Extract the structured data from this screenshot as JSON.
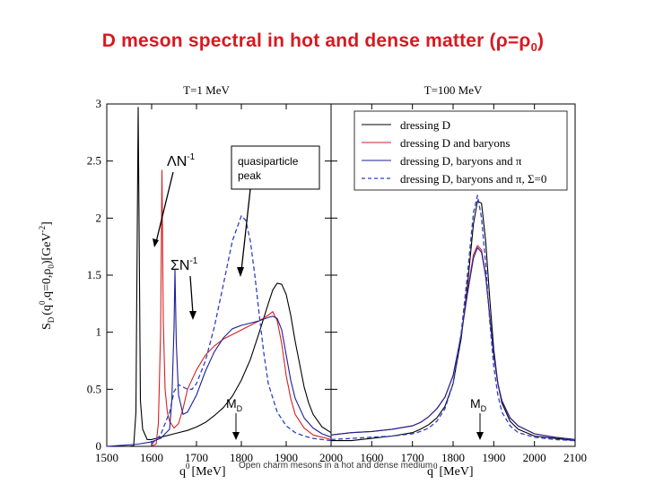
{
  "slide": {
    "title_main": "D meson spectral in hot and dense matter (",
    "title_rho": "ρ=ρ",
    "title_sub": "0",
    "title_close": ")",
    "caption": "Open charm mesons in a hot and dense medium"
  },
  "colors": {
    "title": "#d71920",
    "series_black": "#000000",
    "series_red": "#d62020",
    "series_blue": "#1c1c9a",
    "series_dashed": "#2f3fc8"
  },
  "chart_data": {
    "type": "line",
    "ylabel_text": "S_D(q0,q=0,ρ0)[GeV-2]",
    "ylabel_main": "S",
    "ylabel_sub": "D",
    "ylabel_sup": "0",
    "ylabel_rest": "(q  ,q=0,ρ )[GeV ]",
    "ylabel_rho_sub": "0",
    "ylabel_exp": "-2",
    "ylim": [
      0,
      3
    ],
    "yticks": [
      "0",
      "0.5",
      "1",
      "1.5",
      "2",
      "2.5",
      "3"
    ],
    "grid": false,
    "legend_placement": "top-right",
    "legend": [
      {
        "name": "dressing D",
        "style": "black"
      },
      {
        "name": "dressing D and baryons",
        "style": "red"
      },
      {
        "name": "dressing D, baryons and π",
        "style": "blue"
      },
      {
        "name": "dressing D, baryons and π, Σ=0",
        "style": "dashed"
      }
    ],
    "panels": [
      {
        "id": "left",
        "title": "T=1 MeV",
        "xlabel": "q  [MeV]",
        "xlabel_sup": "0",
        "xlim": [
          1500,
          2000
        ],
        "xticks": [
          "1500",
          "1600",
          "1700",
          "1800",
          "1900",
          "2000"
        ],
        "annotations": {
          "lambda": {
            "sym": "Λ",
            "txt": "N",
            "sup": "-1"
          },
          "sigma": {
            "sym": "Σ",
            "txt": "N",
            "sup": "-1"
          },
          "quasi": [
            "quasiparticle",
            "peak"
          ],
          "md": {
            "txt": "M",
            "sub": "D"
          }
        },
        "series": [
          {
            "name": "dressing D",
            "x": [
              1550,
              1560,
              1565,
              1570,
              1575,
              1580,
              1590,
              1600,
              1620,
              1650,
              1680,
              1700,
              1720,
              1740,
              1760,
              1780,
              1800,
              1820,
              1840,
              1860,
              1870,
              1880,
              1890,
              1900,
              1910,
              1920,
              1930,
              1940,
              1950,
              1960,
              1980,
              2000
            ],
            "y": [
              0,
              0.005,
              0.3,
              2.97,
              0.4,
              0.15,
              0.06,
              0.06,
              0.08,
              0.11,
              0.14,
              0.17,
              0.21,
              0.27,
              0.34,
              0.44,
              0.58,
              0.76,
              1.0,
              1.25,
              1.37,
              1.43,
              1.42,
              1.33,
              1.15,
              0.92,
              0.72,
              0.52,
              0.38,
              0.28,
              0.17,
              0.12
            ]
          },
          {
            "name": "dressing D and baryons",
            "x": [
              1600,
              1610,
              1615,
              1620,
              1623,
              1626,
              1630,
              1635,
              1640,
              1650,
              1660,
              1670,
              1680,
              1700,
              1720,
              1740,
              1760,
              1780,
              1800,
              1820,
              1840,
              1860,
              1870,
              1880,
              1890,
              1900,
              1910,
              1920,
              1940,
              1960,
              1980,
              2000
            ],
            "y": [
              0.005,
              0.02,
              0.2,
              1.0,
              2.42,
              1.1,
              0.5,
              0.3,
              0.22,
              0.16,
              0.2,
              0.33,
              0.5,
              0.67,
              0.8,
              0.88,
              0.94,
              0.98,
              1.02,
              1.06,
              1.1,
              1.15,
              1.18,
              1.1,
              0.9,
              0.62,
              0.42,
              0.28,
              0.16,
              0.1,
              0.08,
              0.06
            ]
          },
          {
            "name": "dressing D, baryons and π",
            "x": [
              1500,
              1540,
              1570,
              1600,
              1620,
              1640,
              1645,
              1650,
              1652,
              1655,
              1660,
              1670,
              1680,
              1700,
              1720,
              1740,
              1760,
              1780,
              1800,
              1820,
              1840,
              1860,
              1870,
              1880,
              1890,
              1900,
              1910,
              1920,
              1940,
              1960,
              1980,
              2000
            ],
            "y": [
              0,
              0.01,
              0.02,
              0.04,
              0.07,
              0.15,
              0.4,
              1.05,
              1.55,
              0.9,
              0.45,
              0.28,
              0.3,
              0.45,
              0.66,
              0.83,
              0.95,
              1.03,
              1.06,
              1.08,
              1.1,
              1.13,
              1.14,
              1.12,
              1.02,
              0.8,
              0.58,
              0.42,
              0.25,
              0.16,
              0.11,
              0.08
            ]
          },
          {
            "name": "dressing D, baryons and π, Σ=0",
            "x": [
              1600,
              1620,
              1640,
              1650,
              1660,
              1670,
              1680,
              1690,
              1700,
              1720,
              1740,
              1760,
              1780,
              1800,
              1810,
              1820,
              1830,
              1840,
              1850,
              1860,
              1880,
              1900,
              1920,
              1940,
              1960,
              1980,
              2000
            ],
            "y": [
              0.02,
              0.1,
              0.3,
              0.48,
              0.54,
              0.52,
              0.5,
              0.5,
              0.55,
              0.75,
              1.05,
              1.42,
              1.8,
              2.02,
              1.98,
              1.8,
              1.5,
              1.15,
              0.82,
              0.55,
              0.3,
              0.18,
              0.12,
              0.09,
              0.07,
              0.06,
              0.05
            ]
          }
        ]
      },
      {
        "id": "right",
        "title": "T=100 MeV",
        "xlabel": "q  [MeV]",
        "xlabel_sup": "0",
        "xlim": [
          1500,
          2100
        ],
        "xticks": [
          "1600",
          "1700",
          "1800",
          "1900",
          "2000",
          "2100"
        ],
        "annotations": {
          "md": {
            "txt": "M",
            "sub": "D"
          }
        },
        "series": [
          {
            "name": "dressing D",
            "x": [
              1500,
              1550,
              1600,
              1650,
              1700,
              1720,
              1740,
              1760,
              1780,
              1800,
              1820,
              1835,
              1850,
              1860,
              1870,
              1880,
              1890,
              1900,
              1910,
              1920,
              1940,
              1960,
              2000,
              2050,
              2100
            ],
            "y": [
              0.05,
              0.05,
              0.07,
              0.09,
              0.12,
              0.15,
              0.19,
              0.25,
              0.35,
              0.55,
              0.95,
              1.4,
              1.95,
              2.15,
              2.13,
              1.8,
              1.3,
              0.85,
              0.55,
              0.38,
              0.22,
              0.15,
              0.09,
              0.07,
              0.05
            ]
          },
          {
            "name": "dressing D and baryons",
            "x": [
              1500,
              1550,
              1600,
              1650,
              1700,
              1720,
              1740,
              1760,
              1780,
              1800,
              1820,
              1835,
              1850,
              1860,
              1870,
              1880,
              1890,
              1900,
              1910,
              1920,
              1940,
              1960,
              2000,
              2050,
              2100
            ],
            "y": [
              0.1,
              0.12,
              0.13,
              0.15,
              0.18,
              0.21,
              0.26,
              0.33,
              0.43,
              0.62,
              0.98,
              1.35,
              1.68,
              1.76,
              1.72,
              1.5,
              1.15,
              0.8,
              0.55,
              0.4,
              0.25,
              0.18,
              0.11,
              0.08,
              0.06
            ]
          },
          {
            "name": "dressing D, baryons and π",
            "x": [
              1500,
              1550,
              1600,
              1650,
              1700,
              1720,
              1740,
              1760,
              1780,
              1800,
              1820,
              1835,
              1850,
              1860,
              1870,
              1880,
              1890,
              1900,
              1910,
              1920,
              1940,
              1960,
              2000,
              2050,
              2100
            ],
            "y": [
              0.1,
              0.12,
              0.13,
              0.15,
              0.18,
              0.21,
              0.26,
              0.33,
              0.43,
              0.62,
              0.98,
              1.33,
              1.65,
              1.74,
              1.7,
              1.49,
              1.14,
              0.8,
              0.55,
              0.4,
              0.25,
              0.18,
              0.11,
              0.08,
              0.06
            ]
          },
          {
            "name": "dressing D, baryons and π, Σ=0",
            "x": [
              1500,
              1550,
              1600,
              1650,
              1700,
              1720,
              1740,
              1760,
              1780,
              1800,
              1820,
              1835,
              1850,
              1860,
              1870,
              1880,
              1890,
              1900,
              1910,
              1920,
              1940,
              1960,
              2000,
              2050,
              2100
            ],
            "y": [
              0.06,
              0.07,
              0.08,
              0.09,
              0.11,
              0.13,
              0.16,
              0.22,
              0.33,
              0.55,
              1.0,
              1.5,
              2.05,
              2.2,
              2.0,
              1.6,
              1.1,
              0.7,
              0.45,
              0.3,
              0.18,
              0.12,
              0.08,
              0.06,
              0.05
            ]
          }
        ]
      }
    ]
  }
}
